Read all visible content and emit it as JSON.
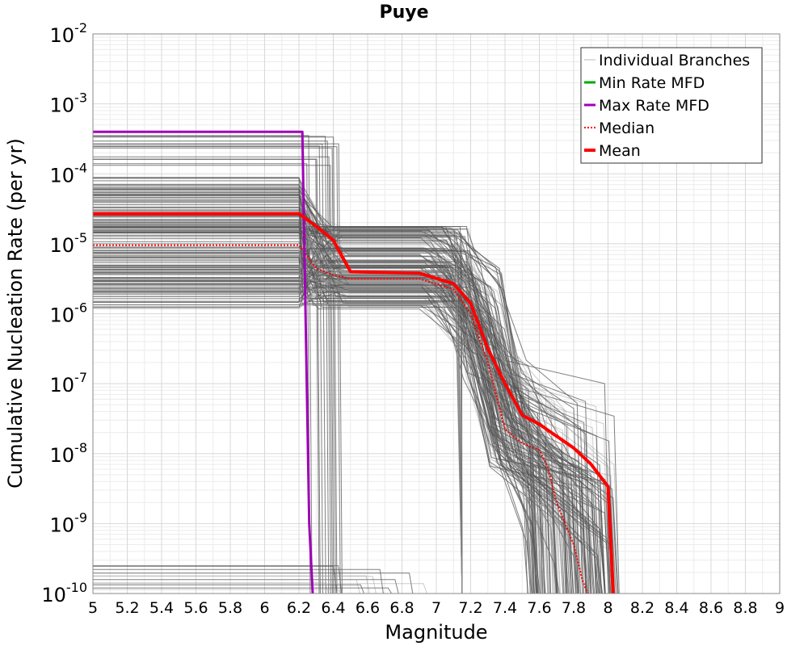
{
  "chart_data": {
    "type": "line",
    "title": "Puye",
    "xlabel": "Magnitude",
    "ylabel": "Cumulative Nucleation Rate (per yr)",
    "xlim": [
      5,
      9
    ],
    "ylim_log10": [
      -10,
      -2
    ],
    "y_scale": "log",
    "x_ticks": [
      5,
      5.2,
      5.4,
      5.6,
      5.8,
      6,
      6.2,
      6.4,
      6.6,
      6.8,
      7,
      7.2,
      7.4,
      7.6,
      7.8,
      8,
      8.2,
      8.4,
      8.6,
      8.8,
      9
    ],
    "x_tick_labels": [
      "5",
      "5.2",
      "5.4",
      "5.6",
      "5.8",
      "6",
      "6.2",
      "6.4",
      "6.6",
      "6.8",
      "7",
      "7.2",
      "7.4",
      "7.6",
      "7.8",
      "8",
      "8.2",
      "8.4",
      "8.6",
      "8.8",
      "9"
    ],
    "y_ticks": [
      {
        "base": "10",
        "exp": "-2"
      },
      {
        "base": "10",
        "exp": "-3"
      },
      {
        "base": "10",
        "exp": "-4"
      },
      {
        "base": "10",
        "exp": "-5"
      },
      {
        "base": "10",
        "exp": "-6"
      },
      {
        "base": "10",
        "exp": "-7"
      },
      {
        "base": "10",
        "exp": "-8"
      },
      {
        "base": "10",
        "exp": "-9"
      },
      {
        "base": "10",
        "exp": "-10"
      }
    ],
    "grid": true,
    "legend_position": "top-right",
    "legend": [
      {
        "label": "Individual Branches",
        "color": "#b8b8b8",
        "style": "thin"
      },
      {
        "label": "Min Rate MFD",
        "color": "#00aa00",
        "style": "solid"
      },
      {
        "label": "Max Rate MFD",
        "color": "#a000b8",
        "style": "solid"
      },
      {
        "label": "Median",
        "color": "#ff0000",
        "style": "dotted"
      },
      {
        "label": "Mean",
        "color": "#ff0000",
        "style": "thick"
      }
    ],
    "series": [
      {
        "name": "Mean",
        "color": "#ff0000",
        "x": [
          5.0,
          6.2,
          6.3,
          6.4,
          6.5,
          6.9,
          7.1,
          7.2,
          7.3,
          7.4,
          7.5,
          7.6,
          7.7,
          7.8,
          7.9,
          8.0,
          8.03
        ],
        "log10_y": [
          -4.57,
          -4.57,
          -4.75,
          -4.95,
          -5.4,
          -5.42,
          -5.57,
          -5.85,
          -6.5,
          -7.0,
          -7.45,
          -7.58,
          -7.75,
          -7.92,
          -8.15,
          -8.47,
          -10.0
        ]
      },
      {
        "name": "Median",
        "color": "#ff0000",
        "x": [
          5.0,
          6.2,
          6.3,
          6.4,
          6.5,
          6.9,
          7.1,
          7.2,
          7.3,
          7.4,
          7.5,
          7.6,
          7.65,
          7.7,
          7.8,
          7.85,
          7.88
        ],
        "log10_y": [
          -5.02,
          -5.02,
          -5.35,
          -5.45,
          -5.5,
          -5.5,
          -5.65,
          -6.0,
          -6.7,
          -7.65,
          -7.85,
          -7.95,
          -8.2,
          -8.7,
          -9.3,
          -9.8,
          -10.0
        ]
      },
      {
        "name": "Max Rate MFD",
        "color": "#a000b8",
        "x": [
          5.0,
          6.22,
          6.26,
          6.28
        ],
        "log10_y": [
          -3.4,
          -3.4,
          -9.0,
          -10.0
        ]
      }
    ],
    "branch_count": 220
  }
}
